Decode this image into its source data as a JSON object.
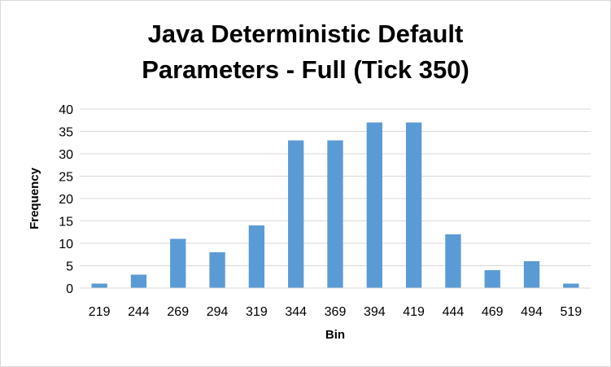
{
  "chart_data": {
    "type": "bar",
    "title_lines": [
      "Java Deterministic Default",
      "Parameters - Full (Tick 350)"
    ],
    "xlabel": "Bin",
    "ylabel": "Frequency",
    "categories": [
      "219",
      "244",
      "269",
      "294",
      "319",
      "344",
      "369",
      "394",
      "419",
      "444",
      "469",
      "494",
      "519"
    ],
    "values": [
      1,
      3,
      11,
      8,
      14,
      33,
      33,
      37,
      37,
      12,
      4,
      6,
      1
    ],
    "ylim": [
      0,
      40
    ],
    "yticks": [
      0,
      5,
      10,
      15,
      20,
      25,
      30,
      35,
      40
    ],
    "grid": true,
    "legend": "none",
    "bar_color": "#5b9bd5",
    "grid_color": "#d9d9d9"
  }
}
